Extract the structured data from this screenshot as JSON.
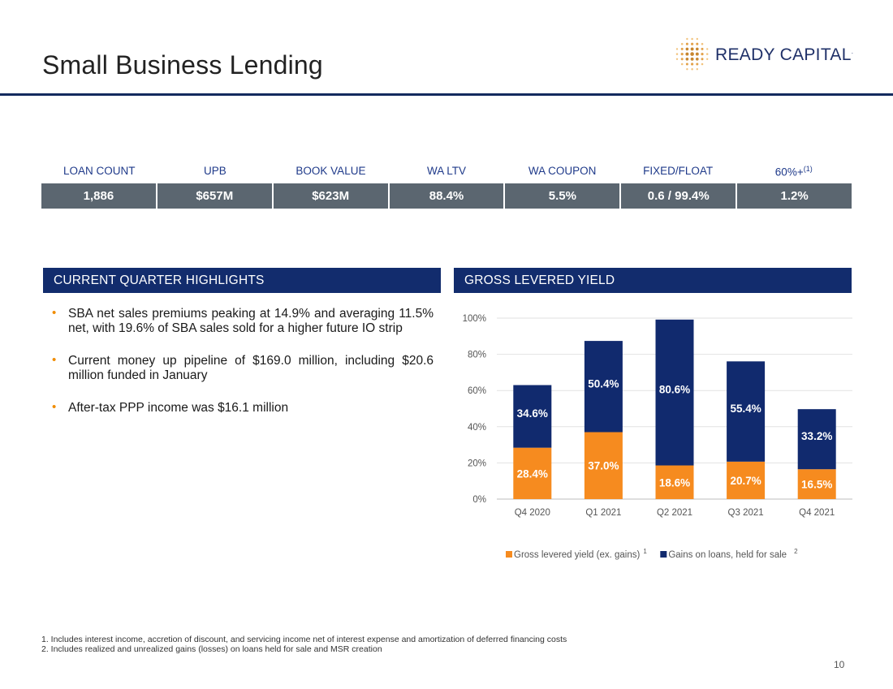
{
  "page": {
    "title": "Small Business Lending",
    "page_number": "10"
  },
  "logo": {
    "name": "READY CAPITAL",
    "mark": "."
  },
  "stats": {
    "headers": [
      "LOAN COUNT",
      "UPB",
      "BOOK VALUE",
      "WA LTV",
      "WA COUPON",
      "FIXED/FLOAT",
      "60%+"
    ],
    "last_header_sup": "(1)",
    "values": [
      "1,886",
      "$657M",
      "$623M",
      "88.4%",
      "5.5%",
      "0.6 / 99.4%",
      "1.2%"
    ]
  },
  "highlights": {
    "header": "CURRENT QUARTER HIGHLIGHTS",
    "bullet_glyph": "•",
    "items": [
      "SBA net sales premiums peaking at 14.9% and averaging 11.5% net, with 19.6% of SBA sales sold for a higher future IO strip",
      "Current money up pipeline of $169.0 million, including $20.6 million funded in January",
      "After-tax PPP income was $16.1 million"
    ]
  },
  "chart_section": {
    "header": "GROSS LEVERED YIELD"
  },
  "chart_data": {
    "type": "bar",
    "stacked": true,
    "categories": [
      "Q4 2020",
      "Q1 2021",
      "Q2 2021",
      "Q3 2021",
      "Q4 2021"
    ],
    "series": [
      {
        "name": "Gross levered yield (ex. gains)",
        "footnote": "1",
        "color": "#f68b1f",
        "values": [
          28.4,
          37.0,
          18.6,
          20.7,
          16.5
        ],
        "labels": [
          "28.4%",
          "37.0%",
          "18.6%",
          "20.7%",
          "16.5%"
        ]
      },
      {
        "name": "Gains on loans, held for sale",
        "footnote": "2",
        "color": "#112a6e",
        "values": [
          34.6,
          50.4,
          80.6,
          55.4,
          33.2
        ],
        "labels": [
          "34.6%",
          "50.4%",
          "80.6%",
          "55.4%",
          "33.2%"
        ]
      }
    ],
    "yticks": [
      "0%",
      "20%",
      "40%",
      "60%",
      "80%",
      "100%"
    ],
    "ylim": [
      0,
      100
    ],
    "grid": true,
    "legend": "bottom"
  },
  "footnotes": [
    "1. Includes interest income, accretion of discount, and servicing income net of interest expense and amortization of deferred financing costs",
    "2. Includes realized and unrealized gains (losses) on loans held for sale and MSR creation"
  ]
}
